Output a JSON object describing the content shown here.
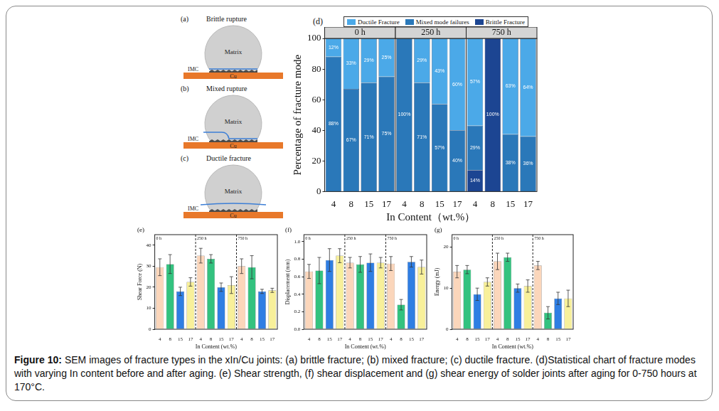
{
  "schematics": [
    {
      "label": "(a)",
      "title": "Brittle rupture",
      "matrix": "Matrix",
      "imc": "IMC",
      "substrate": "Cu"
    },
    {
      "label": "(b)",
      "title": "Mixed rupture",
      "matrix": "Matrix",
      "imc": "IMC",
      "substrate": "Cu"
    },
    {
      "label": "(c)",
      "title": "Ductile fracture",
      "matrix": "Matrix",
      "imc": "IMC",
      "substrate": "Cu"
    }
  ],
  "chart_data": [
    {
      "type": "bar",
      "label": "(d)",
      "stacked": true,
      "data_labels": true,
      "legend": "top",
      "ylabel": "Percentage of fracture mode",
      "xlabel": "In Content（wt.%）",
      "ylim": [
        0,
        100
      ],
      "yticks": [
        0,
        20,
        40,
        60,
        80,
        100
      ],
      "categories": [
        "4",
        "8",
        "15",
        "17"
      ],
      "series": [
        {
          "name": "Ductile Fracture",
          "color": "#4ba9e8"
        },
        {
          "name": "Mixed mode failures",
          "color": "#2a78b9"
        },
        {
          "name": "Brittle Fracture",
          "color": "#1c4592"
        }
      ],
      "panels": [
        {
          "title": "0 h",
          "values": [
            [
              12,
              33,
              29,
              25
            ],
            [
              88,
              67,
              71,
              75
            ],
            [
              0,
              0,
              0,
              0
            ]
          ],
          "value_labels": [
            [
              "12%",
              "33%",
              "29%",
              "25%"
            ],
            [
              "88%",
              "67%",
              "71%",
              "75%"
            ],
            [
              null,
              null,
              null,
              null
            ]
          ]
        },
        {
          "title": "250 h",
          "values": [
            [
              0,
              29,
              43,
              60
            ],
            [
              100,
              71,
              57,
              40
            ],
            [
              0,
              0,
              0,
              0
            ]
          ],
          "value_labels": [
            [
              null,
              "29%",
              "43%",
              "60%"
            ],
            [
              "100%",
              "71%",
              "57%",
              "40%"
            ],
            [
              null,
              null,
              null,
              null
            ]
          ]
        },
        {
          "title": "750 h",
          "values": [
            [
              57,
              0,
              62.5,
              64
            ],
            [
              29,
              0,
              37.5,
              36
            ],
            [
              14,
              100,
              0,
              0
            ]
          ],
          "value_labels": [
            [
              "57%",
              null,
              "63%",
              "64%"
            ],
            [
              "29%",
              null,
              "38%",
              "36%"
            ],
            [
              "14%",
              "100%",
              null,
              null
            ]
          ]
        }
      ]
    },
    {
      "type": "bar",
      "label": "(e)",
      "ylabel": "Shear Force (N)",
      "xlabel": "In Content (wt.%)",
      "ylim": [
        0,
        45
      ],
      "yticks": [
        0,
        10,
        20,
        30,
        40
      ],
      "categories": [
        "4",
        "8",
        "15",
        "17"
      ],
      "colors": [
        "#fbd6bb",
        "#33c27f",
        "#2f7ee3",
        "#f8f09a"
      ],
      "panels": [
        {
          "title": "0 h",
          "values": [
            29.5,
            31,
            18,
            22.5
          ],
          "errors": [
            4,
            4.5,
            2,
            2
          ]
        },
        {
          "title": "250 h",
          "values": [
            35,
            33.5,
            20,
            21
          ],
          "errors": [
            3.5,
            2,
            2,
            4
          ]
        },
        {
          "title": "750 h",
          "values": [
            30,
            29.5,
            18,
            18.5
          ],
          "errors": [
            3.5,
            5.5,
            1,
            1
          ]
        }
      ]
    },
    {
      "type": "bar",
      "label": "(f)",
      "ylabel": "Displacement (mm)",
      "xlabel": "In Content (wt.%)",
      "ylim": [
        0,
        1.08
      ],
      "yticks": [
        {
          "value": 0,
          "label": "0.0"
        },
        0.2,
        0.4,
        0.6,
        0.8,
        {
          "value": 1,
          "label": "1.0"
        }
      ],
      "categories": [
        "4",
        "8",
        "15",
        "17"
      ],
      "colors": [
        "#fbd6bb",
        "#33c27f",
        "#2f7ee3",
        "#f8f09a"
      ],
      "panels": [
        {
          "title": "0 h",
          "values": [
            0.66,
            0.67,
            0.79,
            0.84
          ],
          "errors": [
            0.08,
            0.15,
            0.13,
            0.08
          ]
        },
        {
          "title": "250 h",
          "values": [
            0.76,
            0.74,
            0.76,
            0.76
          ],
          "errors": [
            0.06,
            0.09,
            0.1,
            0.06
          ]
        },
        {
          "title": "750 h",
          "values": [
            0.75,
            0.28,
            0.77,
            0.71
          ],
          "errors": [
            0.08,
            0.06,
            0.06,
            0.08
          ]
        }
      ]
    },
    {
      "type": "bar",
      "label": "(g)",
      "ylabel": "Energy (mJ)",
      "xlabel": "In Content (wt.%)",
      "ylim": [
        0,
        23
      ],
      "yticks": [
        0,
        10,
        20
      ],
      "categories": [
        "4",
        "8",
        "15",
        "17"
      ],
      "colors": [
        "#fbd6bb",
        "#33c27f",
        "#2f7ee3",
        "#f8f09a"
      ],
      "panels": [
        {
          "title": "0 h",
          "values": [
            14,
            14.5,
            8.5,
            11.5
          ],
          "errors": [
            1.5,
            1,
            1.5,
            1
          ]
        },
        {
          "title": "250 h",
          "values": [
            16.5,
            17.5,
            10,
            10.5
          ],
          "errors": [
            2,
            1,
            1,
            1.5
          ]
        },
        {
          "title": "750 h",
          "values": [
            15.5,
            4,
            7.5,
            7.5
          ],
          "errors": [
            1,
            1.5,
            1.5,
            2
          ]
        }
      ]
    }
  ],
  "caption": {
    "label": "Figure 10:",
    "text": "SEM images of fracture types in the xIn/Cu joints: (a) brittle fracture; (b) mixed fracture; (c) ductile fracture. (d)Statistical chart of fracture modes with varying In content before and after aging. (e) Shear strength, (f) shear displacement and (g) shear energy of solder joints after aging for 0-750 hours at 170°C."
  }
}
